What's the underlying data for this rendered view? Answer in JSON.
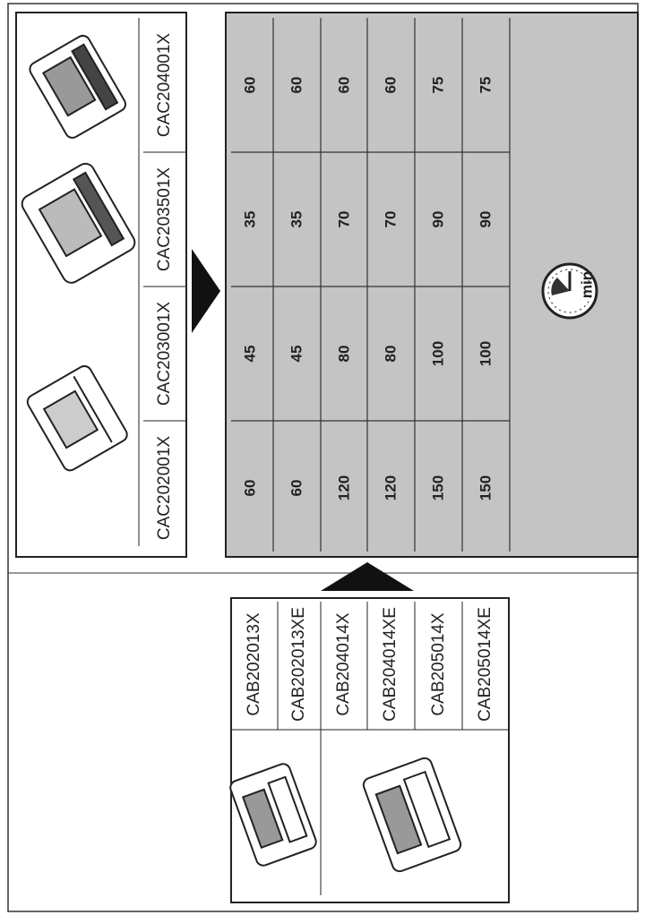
{
  "chargers": [
    "CAC202001X",
    "CAC203001X",
    "CAC203501X",
    "CAC204001X"
  ],
  "batteries": [
    "CAB202013X",
    "CAB202013XE",
    "CAB204014X",
    "CAB204014XE",
    "CAB205014X",
    "CAB205014XE"
  ],
  "times": [
    [
      "60",
      "45",
      "35",
      "60"
    ],
    [
      "60",
      "45",
      "35",
      "60"
    ],
    [
      "120",
      "80",
      "70",
      "60"
    ],
    [
      "120",
      "80",
      "70",
      "60"
    ],
    [
      "150",
      "100",
      "90",
      "75"
    ],
    [
      "150",
      "100",
      "90",
      "75"
    ]
  ],
  "icon_label": "min"
}
